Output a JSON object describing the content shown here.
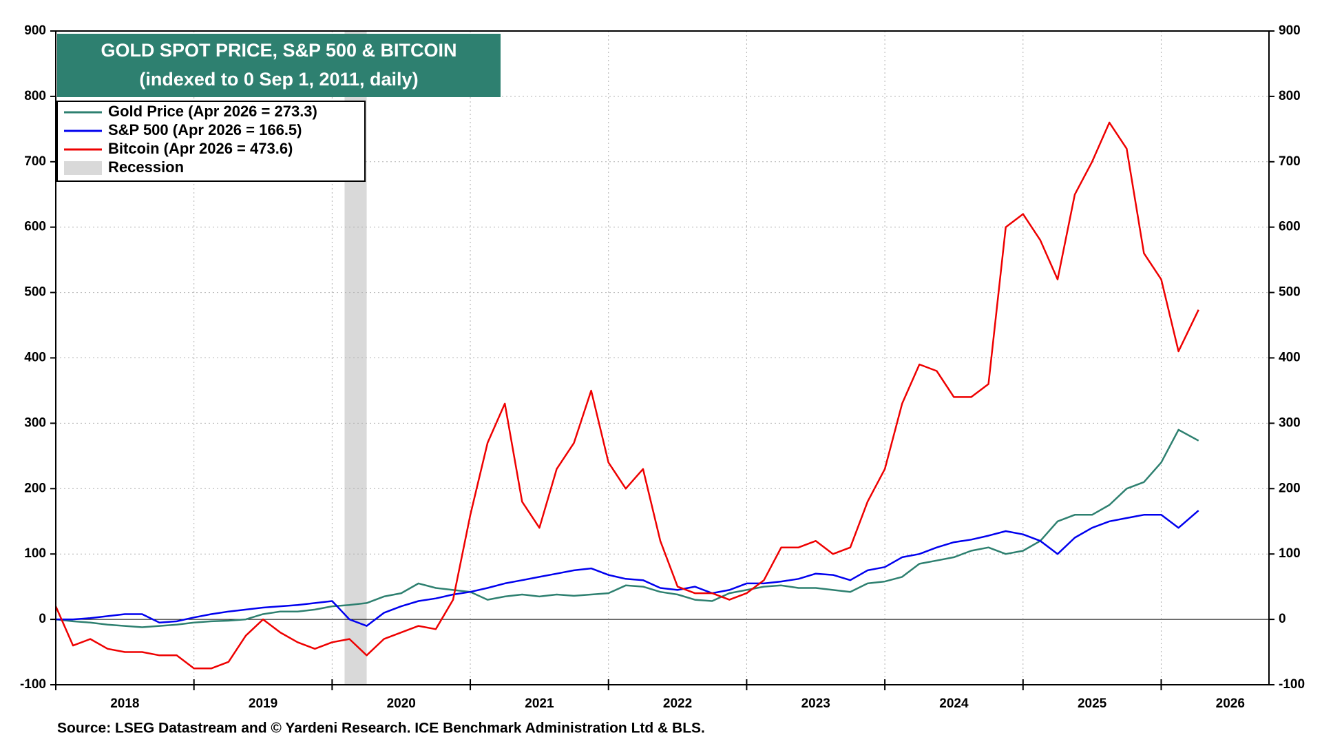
{
  "chart_data": {
    "type": "line",
    "title": "GOLD SPOT PRICE, S&P 500 & BITCOIN",
    "subtitle": "(indexed to 0 Sep 1, 2011, daily)",
    "source": "Source: LSEG Datastream and © Yardeni Research. ICE Benchmark Administration Ltd & BLS.",
    "x": [
      2018,
      2018.125,
      2018.25,
      2018.375,
      2018.5,
      2018.625,
      2018.75,
      2018.875,
      2019,
      2019.125,
      2019.25,
      2019.375,
      2019.5,
      2019.625,
      2019.75,
      2019.875,
      2020,
      2020.125,
      2020.25,
      2020.375,
      2020.5,
      2020.625,
      2020.75,
      2020.875,
      2021,
      2021.125,
      2021.25,
      2021.375,
      2021.5,
      2021.625,
      2021.75,
      2021.875,
      2022,
      2022.125,
      2022.25,
      2022.375,
      2022.5,
      2022.625,
      2022.75,
      2022.875,
      2023,
      2023.125,
      2023.25,
      2023.375,
      2023.5,
      2023.625,
      2023.75,
      2023.875,
      2024,
      2024.125,
      2024.25,
      2024.375,
      2024.5,
      2024.625,
      2024.75,
      2024.875,
      2025,
      2025.125,
      2025.25,
      2025.375,
      2025.5,
      2025.625,
      2025.75,
      2025.875,
      2026,
      2026.125,
      2026.27
    ],
    "series": [
      {
        "name": "Gold Price (Apr 2026 = 273.3)",
        "color": "#2e8070",
        "values": [
          0,
          -3,
          -5,
          -8,
          -10,
          -12,
          -10,
          -8,
          -5,
          -3,
          -2,
          0,
          8,
          12,
          12,
          15,
          20,
          22,
          25,
          35,
          40,
          55,
          48,
          45,
          42,
          30,
          35,
          38,
          35,
          38,
          36,
          38,
          40,
          52,
          50,
          42,
          38,
          30,
          28,
          40,
          45,
          50,
          52,
          48,
          48,
          45,
          42,
          55,
          58,
          65,
          85,
          90,
          95,
          105,
          110,
          100,
          105,
          120,
          150,
          160,
          160,
          175,
          200,
          210,
          240,
          290,
          273.3
        ]
      },
      {
        "name": "S&P 500 (Apr 2026 = 166.5)",
        "color": "#0000ee",
        "values": [
          0,
          0,
          2,
          5,
          8,
          8,
          -5,
          -3,
          3,
          8,
          12,
          15,
          18,
          20,
          22,
          25,
          28,
          0,
          -10,
          10,
          20,
          28,
          32,
          38,
          42,
          48,
          55,
          60,
          65,
          70,
          75,
          78,
          68,
          62,
          60,
          48,
          45,
          50,
          40,
          45,
          55,
          55,
          58,
          62,
          70,
          68,
          60,
          75,
          80,
          95,
          100,
          110,
          118,
          122,
          128,
          135,
          130,
          120,
          100,
          125,
          140,
          150,
          155,
          160,
          160,
          140,
          166.5
        ]
      },
      {
        "name": "Bitcoin (Apr 2026 = 473.6)",
        "color": "#ee0000",
        "values": [
          20,
          -40,
          -30,
          -45,
          -50,
          -50,
          -55,
          -55,
          -75,
          -75,
          -65,
          -25,
          0,
          -20,
          -35,
          -45,
          -35,
          -30,
          -55,
          -30,
          -20,
          -10,
          -15,
          30,
          160,
          270,
          330,
          180,
          140,
          230,
          270,
          350,
          240,
          200,
          230,
          120,
          50,
          40,
          40,
          30,
          40,
          60,
          110,
          110,
          120,
          100,
          110,
          180,
          230,
          330,
          390,
          380,
          340,
          340,
          360,
          600,
          620,
          580,
          520,
          650,
          700,
          760,
          720,
          560,
          520,
          410,
          473.6
        ]
      }
    ],
    "recession": {
      "label": "Recession",
      "x": [
        2020.09,
        2020.25
      ],
      "color": "#d9d9d9"
    },
    "xlim": [
      2018,
      2026.78
    ],
    "xticks": [
      2018,
      2019,
      2020,
      2021,
      2022,
      2023,
      2024,
      2025,
      2026
    ],
    "ylim": [
      -100,
      900
    ],
    "yticks": [
      -100,
      0,
      100,
      200,
      300,
      400,
      500,
      600,
      700,
      800,
      900
    ],
    "y2lim": [
      -100,
      900
    ],
    "y2ticks": [
      -100,
      0,
      100,
      200,
      300,
      400,
      500,
      600,
      700,
      800,
      900
    ],
    "grid": true
  }
}
